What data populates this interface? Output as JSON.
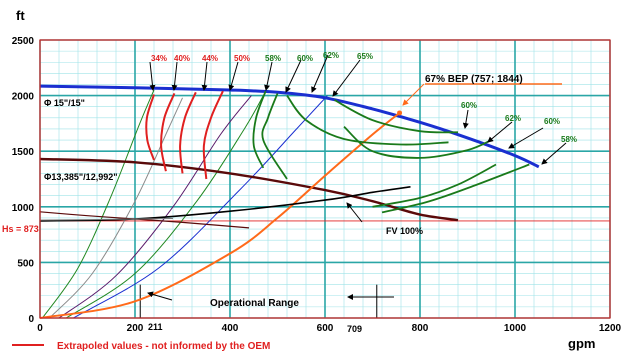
{
  "chart_data": {
    "type": "line",
    "title": "",
    "xlabel": "gpm",
    "ylabel": "ft",
    "xlim": [
      0,
      1200
    ],
    "ylim": [
      0,
      2500
    ],
    "x_ticks": [
      "0",
      "200",
      "400",
      "600",
      "800",
      "1000",
      "1200"
    ],
    "y_ticks": [
      "0",
      "500",
      "1000",
      "1500",
      "2000",
      "2500"
    ],
    "grid": true,
    "colors": {
      "minor_grid": "#9fe3e8",
      "major_grid": "#2aa6a6",
      "frame": "#e02020",
      "head_max": "#1a2fd0",
      "head_min": "#5a0a0a",
      "bep": "#ff6a1a",
      "system": "#000000",
      "extrapolated": "#e02020",
      "efficiency": "#1a7a1a"
    },
    "annotations": {
      "diameter_max": "Φ 15\"/15\"",
      "diameter_min": "Φ13,385\"/12,992\"",
      "bep": "67% BEP (757; 1844)",
      "hs": "Hs = 873",
      "fv": "FV 100%",
      "operational_range": "Operational Range",
      "x_marker_1": "211",
      "x_marker_2": "709",
      "legend": "Extrapoled values - not informed by the OEM"
    },
    "series": [
      {
        "name": "Φ 15\"/15\"",
        "role": "head_max",
        "x": [
          0,
          200,
          400,
          500,
          600,
          700,
          800,
          900,
          1000,
          1050
        ],
        "y": [
          2085,
          2070,
          2050,
          2030,
          1980,
          1880,
          1760,
          1620,
          1460,
          1360
        ]
      },
      {
        "name": "Φ13,385\"/12,992\"",
        "role": "head_min",
        "x": [
          0,
          200,
          400,
          600,
          700,
          800,
          880
        ],
        "y": [
          1430,
          1400,
          1300,
          1150,
          1050,
          930,
          880
        ]
      },
      {
        "name": "",
        "role": "bep",
        "x": [
          0,
          200,
          400,
          500,
          600,
          700,
          757
        ],
        "y": [
          0,
          150,
          580,
          900,
          1280,
          1650,
          1844
        ]
      },
      {
        "name": "",
        "role": "system",
        "x": [
          0,
          200,
          400,
          600,
          700,
          780
        ],
        "y": [
          873,
          890,
          960,
          1060,
          1130,
          1180
        ]
      },
      {
        "name": "",
        "role": "system_low",
        "x": [
          0,
          100,
          200,
          300,
          440
        ],
        "y": [
          955,
          920,
          890,
          860,
          810
        ]
      },
      {
        "name": "",
        "role": "line_gray",
        "x": [
          0,
          200,
          280
        ],
        "y": [
          880,
          890,
          895
        ]
      }
    ],
    "affinity_curves": [
      {
        "color": "#228822",
        "points": [
          [
            5,
            0
          ],
          [
            80,
            450
          ],
          [
            150,
            1100
          ],
          [
            210,
            1750
          ],
          [
            240,
            2050
          ]
        ]
      },
      {
        "color": "#8a8a8a",
        "points": [
          [
            20,
            0
          ],
          [
            110,
            400
          ],
          [
            200,
            1050
          ],
          [
            270,
            1700
          ],
          [
            300,
            1980
          ]
        ]
      },
      {
        "color": "#5a1a6a",
        "points": [
          [
            40,
            0
          ],
          [
            160,
            380
          ],
          [
            280,
            1000
          ],
          [
            380,
            1650
          ],
          [
            445,
            2000
          ]
        ]
      },
      {
        "color": "#228822",
        "points": [
          [
            55,
            0
          ],
          [
            200,
            400
          ],
          [
            330,
            1050
          ],
          [
            430,
            1700
          ],
          [
            470,
            2000
          ]
        ]
      },
      {
        "color": "#1a2fd0",
        "points": [
          [
            70,
            0
          ],
          [
            250,
            450
          ],
          [
            420,
            1150
          ],
          [
            540,
            1700
          ],
          [
            605,
            2000
          ]
        ]
      }
    ],
    "extrapolated_curves": [
      {
        "label": "34%",
        "points": [
          [
            240,
            2010
          ],
          [
            225,
            1800
          ],
          [
            226,
            1600
          ],
          [
            240,
            1420
          ]
        ]
      },
      {
        "label": "40%",
        "points": [
          [
            283,
            2020
          ],
          [
            262,
            1800
          ],
          [
            255,
            1550
          ],
          [
            265,
            1320
          ]
        ]
      },
      {
        "label": "44%",
        "points": [
          [
            328,
            2030
          ],
          [
            305,
            1800
          ],
          [
            295,
            1550
          ],
          [
            300,
            1300
          ]
        ]
      },
      {
        "label": "50%",
        "points": [
          [
            385,
            2040
          ],
          [
            360,
            1800
          ],
          [
            345,
            1550
          ],
          [
            350,
            1250
          ]
        ]
      }
    ],
    "efficiency_curves": [
      {
        "label": "58%",
        "points": [
          [
            475,
            2040
          ],
          [
            455,
            1800
          ],
          [
            450,
            1550
          ],
          [
            470,
            1350
          ]
        ]
      },
      {
        "label": "60%",
        "points": [
          [
            500,
            2020
          ],
          [
            480,
            1800
          ],
          [
            470,
            1600
          ],
          [
            520,
            1250
          ]
        ]
      },
      {
        "label": "62%",
        "points": [
          [
            520,
            2000
          ],
          [
            560,
            1780
          ],
          [
            640,
            1610
          ],
          [
            760,
            1560
          ],
          [
            860,
            1580
          ]
        ]
      },
      {
        "label": "65%",
        "points": [
          [
            620,
            1960
          ],
          [
            700,
            1780
          ],
          [
            800,
            1680
          ],
          [
            880,
            1670
          ]
        ]
      },
      {
        "label": "60%",
        "points": [
          [
            640,
            1720
          ],
          [
            700,
            1500
          ],
          [
            800,
            1440
          ],
          [
            900,
            1510
          ],
          [
            950,
            1600
          ]
        ]
      },
      {
        "label": "62%",
        "points": [
          [
            700,
            1000
          ],
          [
            800,
            1080
          ],
          [
            880,
            1200
          ],
          [
            960,
            1380
          ]
        ]
      },
      {
        "label": "58%",
        "points": [
          [
            720,
            950
          ],
          [
            820,
            1050
          ],
          [
            920,
            1200
          ],
          [
            1030,
            1380
          ]
        ]
      }
    ],
    "markers": [
      {
        "type": "vline",
        "x": 211
      },
      {
        "type": "vline",
        "x": 709
      },
      {
        "type": "hline",
        "y": 873
      }
    ]
  }
}
